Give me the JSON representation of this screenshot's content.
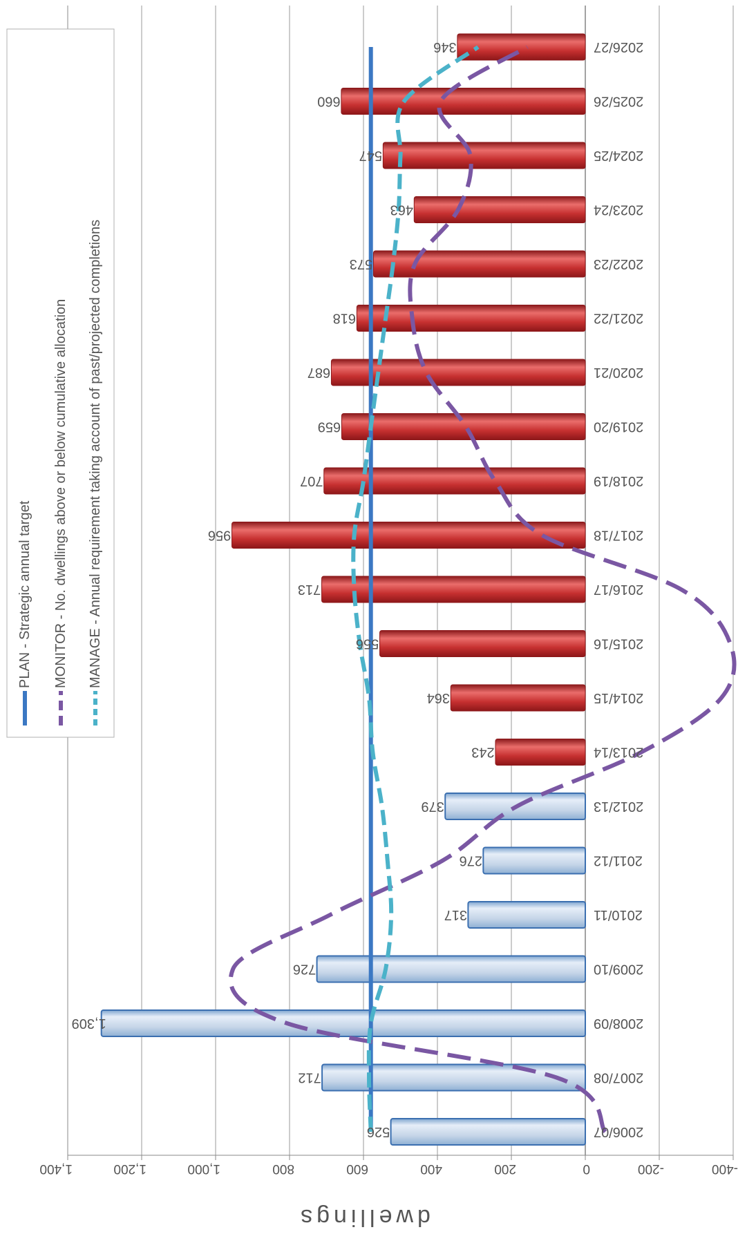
{
  "chart_data": {
    "type": "bar",
    "orientation": "rotated-180",
    "ylabel": "dwellings",
    "ylim": [
      -400,
      1400
    ],
    "y_ticks": [
      "-400",
      "-200",
      "0",
      "200",
      "400",
      "600",
      "800",
      "1,000",
      "1,200",
      "1,400"
    ],
    "grid": true,
    "categories": [
      "2006/07",
      "2007/08",
      "2008/09",
      "2009/10",
      "2010/11",
      "2011/12",
      "2012/13",
      "2013/14",
      "2014/15",
      "2015/16",
      "2016/17",
      "2017/18",
      "2018/19",
      "2019/20",
      "2020/21",
      "2021/22",
      "2022/23",
      "2023/24",
      "2024/25",
      "2025/26",
      "2026/27"
    ],
    "bars": {
      "values": [
        526,
        712,
        1309,
        726,
        317,
        276,
        379,
        243,
        364,
        556,
        713,
        956,
        707,
        659,
        687,
        618,
        573,
        463,
        547,
        660,
        346
      ],
      "labels": [
        "526",
        "712",
        "1,309",
        "726",
        "317",
        "276",
        "379",
        "243",
        "364",
        "556",
        "713",
        "956",
        "707",
        "659",
        "687",
        "618",
        "573",
        "463",
        "547",
        "660",
        "346"
      ],
      "past_count": 7,
      "past_color": "#c5d5e8",
      "future_color": "#c0282a"
    },
    "series": [
      {
        "name": "PLAN - Strategic annual target",
        "style": "solid",
        "color": "#3b78c3",
        "values": [
          580,
          580,
          580,
          580,
          580,
          580,
          580,
          580,
          580,
          580,
          580,
          580,
          580,
          580,
          580,
          580,
          580,
          580,
          580,
          580,
          580
        ]
      },
      {
        "name": "MONITOR - No. dwellings above or below cumulative allocation",
        "style": "dashed",
        "color": "#7a57a3",
        "values": [
          -54,
          78,
          807,
          953,
          690,
          386,
          185,
          -152,
          -368,
          -392,
          -259,
          117,
          244,
          323,
          430,
          468,
          461,
          344,
          311,
          391,
          157
        ]
      },
      {
        "name": "MANAGE - Annual requirement taking account of past/projected completions",
        "style": "dashed",
        "color": "#4bb2c9",
        "values": [
          580,
          585,
          580,
          540,
          525,
          535,
          550,
          575,
          585,
          610,
          625,
          625,
          600,
          580,
          560,
          540,
          520,
          505,
          500,
          490,
          290
        ]
      }
    ],
    "legend": [
      "PLAN - Strategic annual target",
      "MONITOR - No. dwellings above or below cumulative allocation",
      "MANAGE - Annual requirement taking account of past/projected completions"
    ],
    "legend_position": "top-left"
  }
}
